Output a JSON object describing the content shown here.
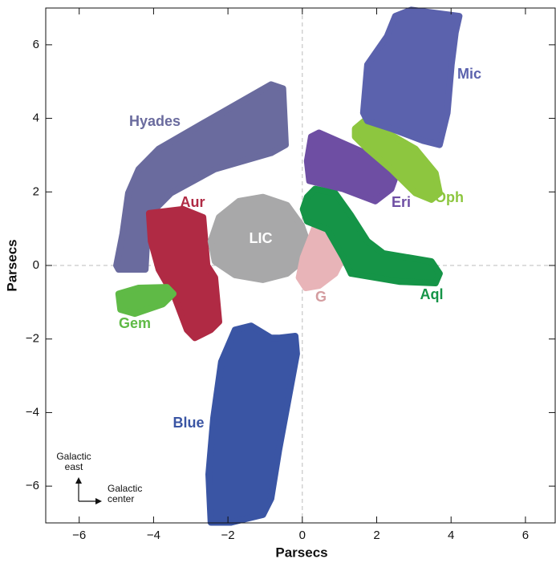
{
  "chart_data": {
    "type": "region",
    "xlabel": "Parsecs",
    "ylabel": "Parsecs",
    "xlim": [
      -6.9,
      6.8
    ],
    "ylim": [
      -7,
      7
    ],
    "xticks": [
      {
        "value": -6,
        "label": "−6"
      },
      {
        "value": -4,
        "label": "−4"
      },
      {
        "value": -2,
        "label": "−2"
      },
      0,
      2,
      4,
      6
    ],
    "yticks": [
      {
        "value": -6,
        "label": "−6"
      },
      {
        "value": -4,
        "label": "−4"
      },
      {
        "value": -2,
        "label": "−2"
      },
      0,
      2,
      4,
      6
    ],
    "annotations": [
      [
        "Galactic",
        "east"
      ],
      [
        "Galactic",
        "center"
      ]
    ],
    "regions": [
      {
        "name": "Hyades",
        "color": "#6a6b9e",
        "x": [
          -5.0,
          -4.83,
          -4.68,
          -4.4,
          -3.86,
          -2.56,
          -0.84,
          -0.52,
          -0.45,
          -0.84,
          -2.35,
          -3.53,
          -4.07,
          -4.18,
          -4.22,
          -4.94
        ],
        "y": [
          0,
          0.87,
          1.97,
          2.62,
          3.17,
          3.93,
          4.92,
          4.81,
          3.28,
          3.06,
          2.62,
          1.97,
          1.42,
          0.66,
          -0.11,
          -0.11
        ]
      },
      {
        "name": "Aur",
        "color": "#b02a44",
        "x": [
          -4.12,
          -3.21,
          -2.67,
          -2.56,
          -2.35,
          -2.24,
          -2.46,
          -2.89,
          -3.1,
          -3.43,
          -3.86,
          -4.07
        ],
        "y": [
          1.42,
          1.53,
          1.31,
          0,
          -0.33,
          -1.53,
          -1.75,
          -1.97,
          -1.75,
          -0.87,
          -0.11,
          0.66
        ]
      },
      {
        "name": "Gem",
        "color": "#5fba46",
        "x": [
          -4.94,
          -4.4,
          -3.64,
          -3.47,
          -3.75,
          -4.5,
          -4.89
        ],
        "y": [
          -0.77,
          -0.61,
          -0.59,
          -0.77,
          -1.05,
          -1.31,
          -1.2
        ]
      },
      {
        "name": "LIC",
        "color": "#a8a8a9",
        "x": [
          -2.46,
          -2.24,
          -1.7,
          -1.06,
          -0.41,
          -0.02,
          0.13,
          -0.02,
          -0.41,
          -1.06,
          -1.81,
          -2.35
        ],
        "y": [
          0.66,
          1.31,
          1.75,
          1.86,
          1.64,
          1.09,
          0.66,
          0.11,
          -0.22,
          -0.39,
          -0.26,
          0.11
        ]
      },
      {
        "name": "G",
        "color": "#e8b4b8",
        "x": [
          0.02,
          0.34,
          0.78,
          1.1,
          0.88,
          0.45,
          0.09,
          -0.09
        ],
        "y": [
          0.22,
          1.05,
          0.87,
          0.22,
          -0.22,
          -0.55,
          -0.61,
          -0.33
        ]
      },
      {
        "name": "Aql",
        "color": "#159447",
        "x": [
          0.13,
          0.34,
          0.88,
          1.31,
          1.75,
          2.18,
          3.47,
          3.69,
          3.58,
          2.61,
          1.31,
          1.1,
          0.67,
          0.13,
          0.02
        ],
        "y": [
          1.86,
          2.08,
          1.97,
          1.36,
          0.66,
          0.33,
          0.11,
          -0.22,
          -0.48,
          -0.44,
          -0.22,
          0.22,
          0.98,
          1.2,
          1.53
        ]
      },
      {
        "name": "Eri",
        "color": "#6e4ea3",
        "x": [
          0.24,
          0.45,
          2.18,
          2.54,
          2.39,
          1.96,
          1.1,
          0.19,
          0.13
        ],
        "y": [
          3.5,
          3.61,
          2.84,
          2.51,
          2.08,
          1.75,
          2.08,
          2.3,
          2.84
        ]
      },
      {
        "name": "Oph",
        "color": "#8dc63f",
        "x": [
          1.42,
          1.75,
          2.28,
          3.04,
          3.58,
          3.69,
          3.47,
          3.04,
          2.39,
          1.75,
          1.42
        ],
        "y": [
          3.72,
          4.0,
          3.61,
          3.17,
          2.51,
          1.97,
          1.79,
          1.97,
          2.62,
          3.17,
          3.5
        ]
      },
      {
        "name": "Mic",
        "color": "#5b62ad",
        "x": [
          1.64,
          1.75,
          2.28,
          2.5,
          2.93,
          4.22,
          4.12,
          4.01,
          3.9,
          3.69,
          3.25,
          2.39,
          1.75
        ],
        "y": [
          4.15,
          5.46,
          6.23,
          6.78,
          6.95,
          6.78,
          6.34,
          5.46,
          4.15,
          3.28,
          3.39,
          3.72,
          3.93
        ]
      },
      {
        "name": "Blue",
        "color": "#3a55a4",
        "x": [
          -2.46,
          -2.52,
          -2.39,
          -2.18,
          -1.81,
          -1.38,
          -0.84,
          -0.63,
          -0.19,
          -0.15,
          -0.63,
          -0.84,
          -1.06,
          -1.92
        ],
        "y": [
          -6.99,
          -5.68,
          -4.15,
          -2.62,
          -1.75,
          -1.64,
          -1.97,
          -1.97,
          -1.92,
          -2.4,
          -5.03,
          -6.34,
          -6.78,
          -6.99
        ]
      }
    ]
  }
}
